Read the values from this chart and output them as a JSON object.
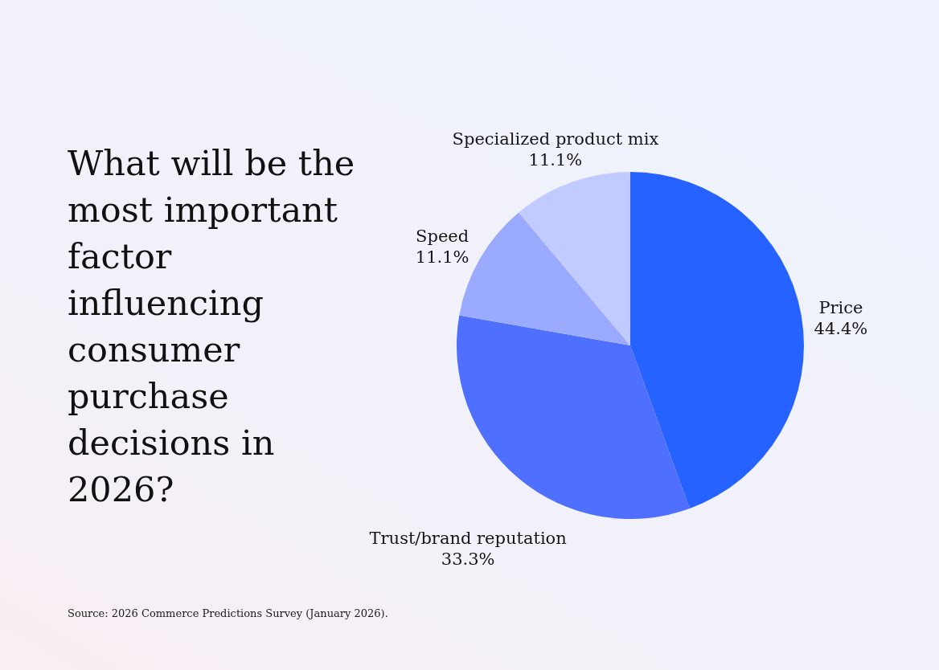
{
  "chart_data": {
    "type": "pie",
    "title": "What will be the most important factor influencing consumer purchase decisions in 2026?",
    "categories": [
      "Price",
      "Trust/brand reputation",
      "Speed",
      "Specialized product mix"
    ],
    "values": [
      44.4,
      33.3,
      11.1,
      11.1
    ],
    "value_labels": [
      "44.4%",
      "33.3%",
      "11.1%",
      "11.1%"
    ],
    "colors": [
      "#2662ff",
      "#4f70ff",
      "#9aabff",
      "#c1cbff"
    ],
    "annotations": [
      "Source: 2026 Commerce Predictions Survey (January 2026)."
    ]
  }
}
